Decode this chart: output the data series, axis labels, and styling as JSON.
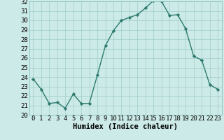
{
  "x": [
    0,
    1,
    2,
    3,
    4,
    5,
    6,
    7,
    8,
    9,
    10,
    11,
    12,
    13,
    14,
    15,
    16,
    17,
    18,
    19,
    20,
    21,
    22,
    23
  ],
  "y": [
    23.8,
    22.7,
    21.2,
    21.3,
    20.7,
    22.2,
    21.2,
    21.2,
    24.2,
    27.3,
    28.9,
    30.0,
    30.3,
    30.6,
    31.3,
    32.1,
    32.0,
    30.5,
    30.6,
    29.1,
    26.2,
    25.8,
    23.2,
    22.7
  ],
  "line_color": "#2d7a6e",
  "marker_color": "#2d7a6e",
  "bg_color": "#cceae7",
  "grid_color": "#a0ccc8",
  "xlabel": "Humidex (Indice chaleur)",
  "ylim": [
    20,
    32
  ],
  "xlim_min": -0.5,
  "xlim_max": 23.5,
  "yticks": [
    20,
    21,
    22,
    23,
    24,
    25,
    26,
    27,
    28,
    29,
    30,
    31,
    32
  ],
  "xticks": [
    0,
    1,
    2,
    3,
    4,
    5,
    6,
    7,
    8,
    9,
    10,
    11,
    12,
    13,
    14,
    15,
    16,
    17,
    18,
    19,
    20,
    21,
    22,
    23
  ],
  "xtick_labels": [
    "0",
    "1",
    "2",
    "3",
    "4",
    "5",
    "6",
    "7",
    "8",
    "9",
    "10",
    "11",
    "12",
    "13",
    "14",
    "15",
    "16",
    "17",
    "18",
    "19",
    "20",
    "21",
    "22",
    "23"
  ],
  "xlabel_fontsize": 7.5,
  "tick_fontsize": 6.5,
  "linewidth": 1.0,
  "markersize": 2.2
}
